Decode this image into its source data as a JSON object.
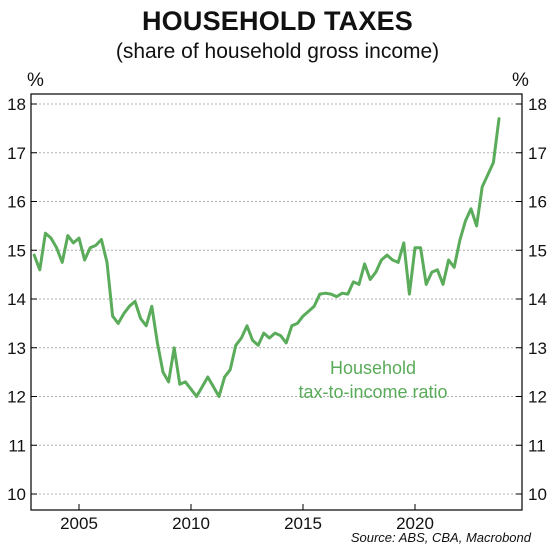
{
  "header": {
    "title": "HOUSEHOLD TAXES",
    "subtitle": "(share of household gross income)"
  },
  "axis_units": {
    "left": "%",
    "right": "%"
  },
  "source": "Source: ABS, CBA, Macrobond",
  "colors": {
    "series": "#5aab5a",
    "grid": "#b0b0b0",
    "axis": "#000000"
  },
  "chart_data": {
    "type": "line",
    "title": "HOUSEHOLD TAXES",
    "subtitle": "(share of household gross income)",
    "ylabel": "%",
    "ylim": [
      10,
      18
    ],
    "xlim": [
      2003.0,
      2024.5
    ],
    "x_ticks": [
      2005,
      2010,
      2015,
      2020
    ],
    "x_tick_labels": [
      "2005",
      "2010",
      "2015",
      "2020"
    ],
    "y_ticks": [
      10,
      11,
      12,
      13,
      14,
      15,
      16,
      17,
      18
    ],
    "y_tick_labels": [
      "10",
      "11",
      "12",
      "13",
      "14",
      "15",
      "16",
      "17",
      "18"
    ],
    "grid": "horizontal dotted",
    "dual_y_axis": true,
    "annotation": {
      "lines": [
        "Household",
        "tax-to-income ratio"
      ],
      "placement": "center-right"
    },
    "series": [
      {
        "x": [
          2003.0,
          2003.25,
          2003.5,
          2003.75,
          2004.0,
          2004.25,
          2004.5,
          2004.75,
          2005.0,
          2005.25,
          2005.5,
          2005.75,
          2006.0,
          2006.25,
          2006.5,
          2006.75,
          2007.0,
          2007.25,
          2007.5,
          2007.75,
          2008.0,
          2008.25,
          2008.5,
          2008.75,
          2009.0,
          2009.25,
          2009.5,
          2009.75,
          2010.0,
          2010.25,
          2010.5,
          2010.75,
          2011.0,
          2011.25,
          2011.5,
          2011.75,
          2012.0,
          2012.25,
          2012.5,
          2012.75,
          2013.0,
          2013.25,
          2013.5,
          2013.75,
          2014.0,
          2014.25,
          2014.5,
          2014.75,
          2015.0,
          2015.25,
          2015.5,
          2015.75,
          2016.0,
          2016.25,
          2016.5,
          2016.75,
          2017.0,
          2017.25,
          2017.5,
          2017.75,
          2018.0,
          2018.25,
          2018.5,
          2018.75,
          2019.0,
          2019.25,
          2019.5,
          2019.75,
          2020.0,
          2020.25,
          2020.5,
          2020.75,
          2021.0,
          2021.25,
          2021.5,
          2021.75,
          2022.0,
          2022.25,
          2022.5,
          2022.75,
          2023.0,
          2023.25,
          2023.5,
          2023.75
        ],
        "values": [
          14.9,
          14.6,
          15.35,
          15.25,
          15.05,
          14.75,
          15.3,
          15.15,
          15.25,
          14.8,
          15.05,
          15.1,
          15.22,
          14.75,
          13.65,
          13.5,
          13.7,
          13.85,
          13.95,
          13.6,
          13.45,
          13.85,
          13.1,
          12.5,
          12.3,
          13.0,
          12.25,
          12.3,
          12.15,
          12.0,
          12.2,
          12.4,
          12.2,
          12.0,
          12.4,
          12.55,
          13.05,
          13.2,
          13.45,
          13.15,
          13.05,
          13.3,
          13.2,
          13.3,
          13.25,
          13.1,
          13.45,
          13.5,
          13.65,
          13.75,
          13.85,
          14.1,
          14.12,
          14.1,
          14.05,
          14.12,
          14.1,
          14.35,
          14.3,
          14.72,
          14.4,
          14.55,
          14.8,
          14.9,
          14.8,
          14.75,
          15.15,
          14.1,
          15.05,
          15.05,
          14.3,
          14.55,
          14.6,
          14.3,
          14.8,
          14.65,
          15.2,
          15.6,
          15.85,
          15.5,
          16.3,
          16.55,
          16.8,
          17.7
        ]
      }
    ]
  }
}
